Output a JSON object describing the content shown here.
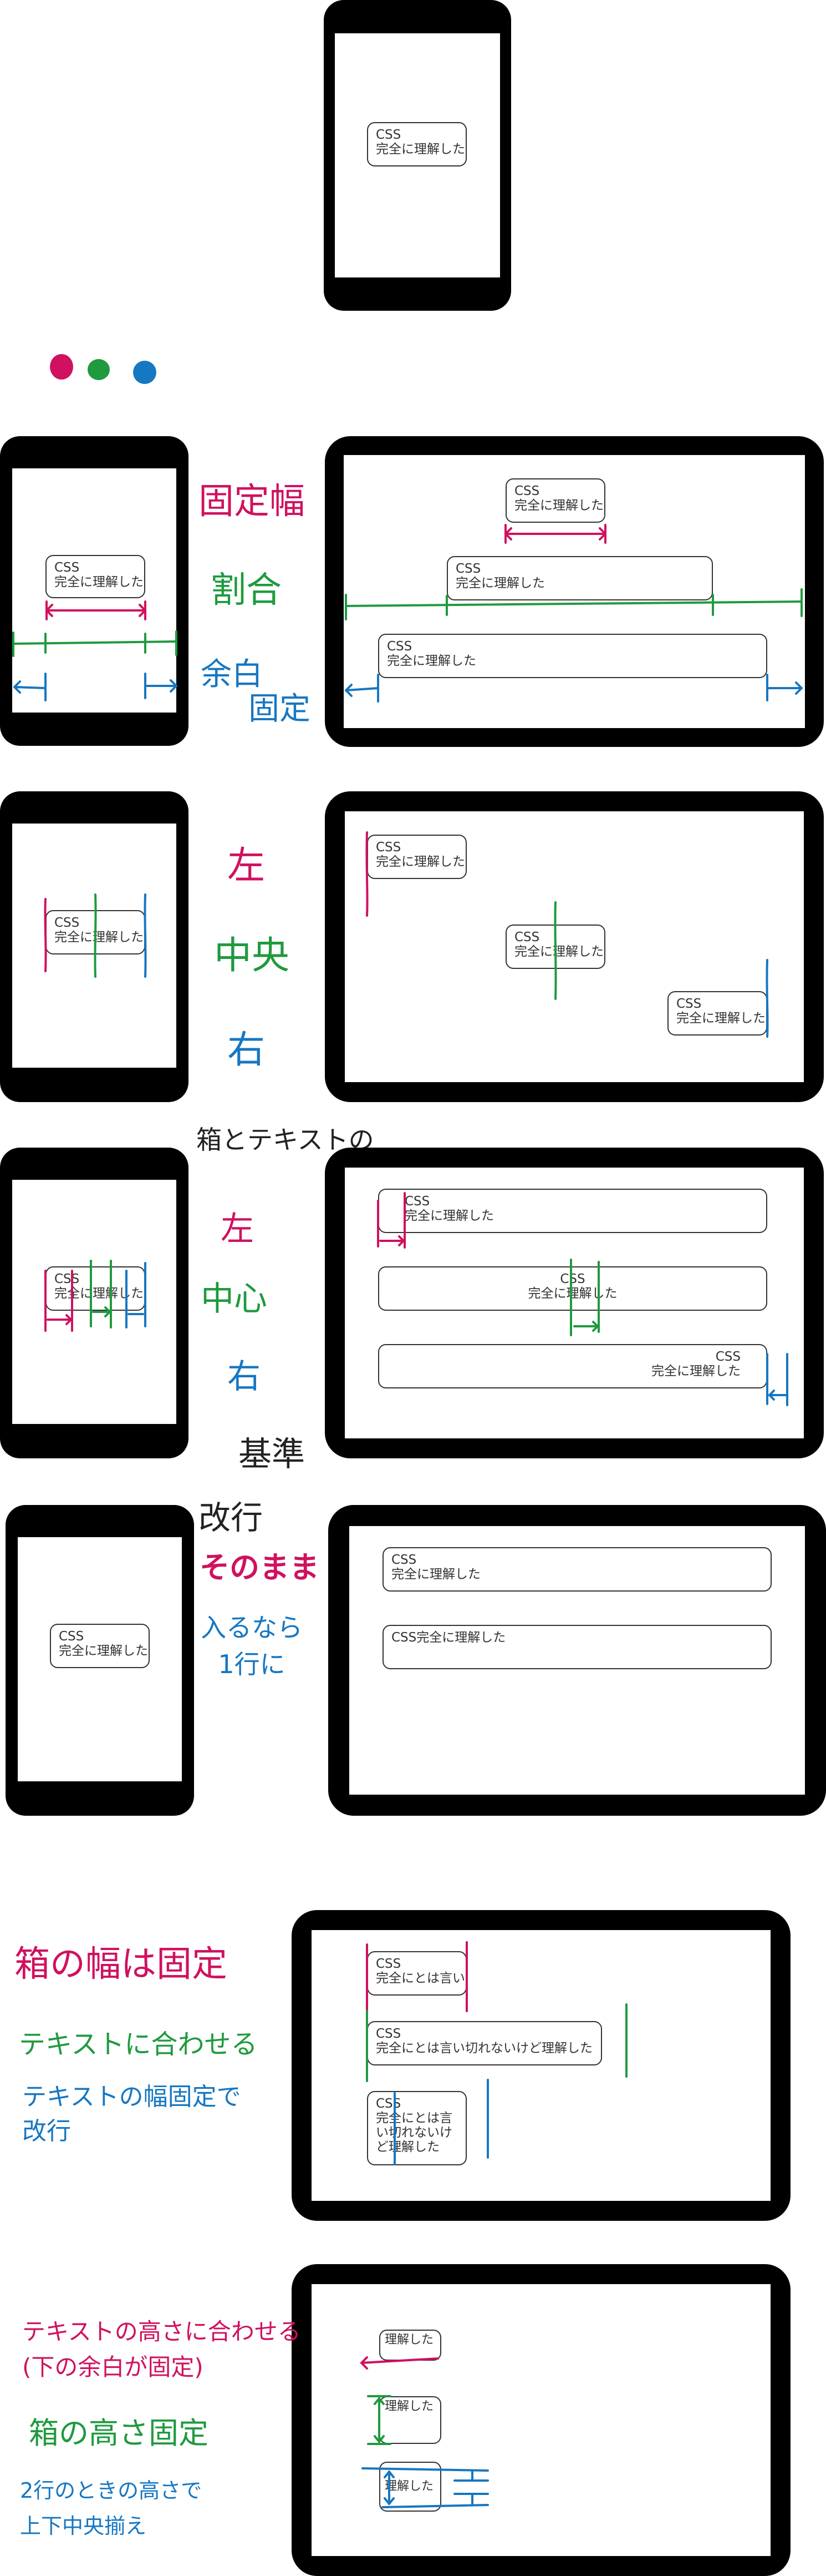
{
  "box_text": {
    "css": "CSS",
    "full": "完全に理解した",
    "inline": "CSS完全に理解した",
    "long": "完全にとは言い切れないけど理解した",
    "understood": "理解した"
  },
  "colors": {
    "pink": "#d0115f",
    "green": "#1f9a3e",
    "blue": "#1677c2",
    "ink": "#222222"
  },
  "labels": {
    "fixed_width": "固定幅",
    "ratio": "割合",
    "margin": "余白",
    "fixed": "固定",
    "left": "左",
    "center": "中央",
    "right": "右",
    "box_and_text": "箱とテキストの",
    "left2": "左",
    "center2": "中心",
    "right2": "右",
    "basis": "基準",
    "line_break": "改行",
    "as_is": "そのまま",
    "one_line": "入るなら\n1行に",
    "box_width_fixed": "箱の幅は固定",
    "fit_text": "テキストに合わせる",
    "text_width_fixed": "テキストの幅固定で\n改行",
    "fit_text_height": "テキストの高さに合わせる\n(下の余白が固定)",
    "box_height_fixed": "箱の高さ固定",
    "two_line_height": "2行のときの高さで\n上下中央揃え"
  }
}
